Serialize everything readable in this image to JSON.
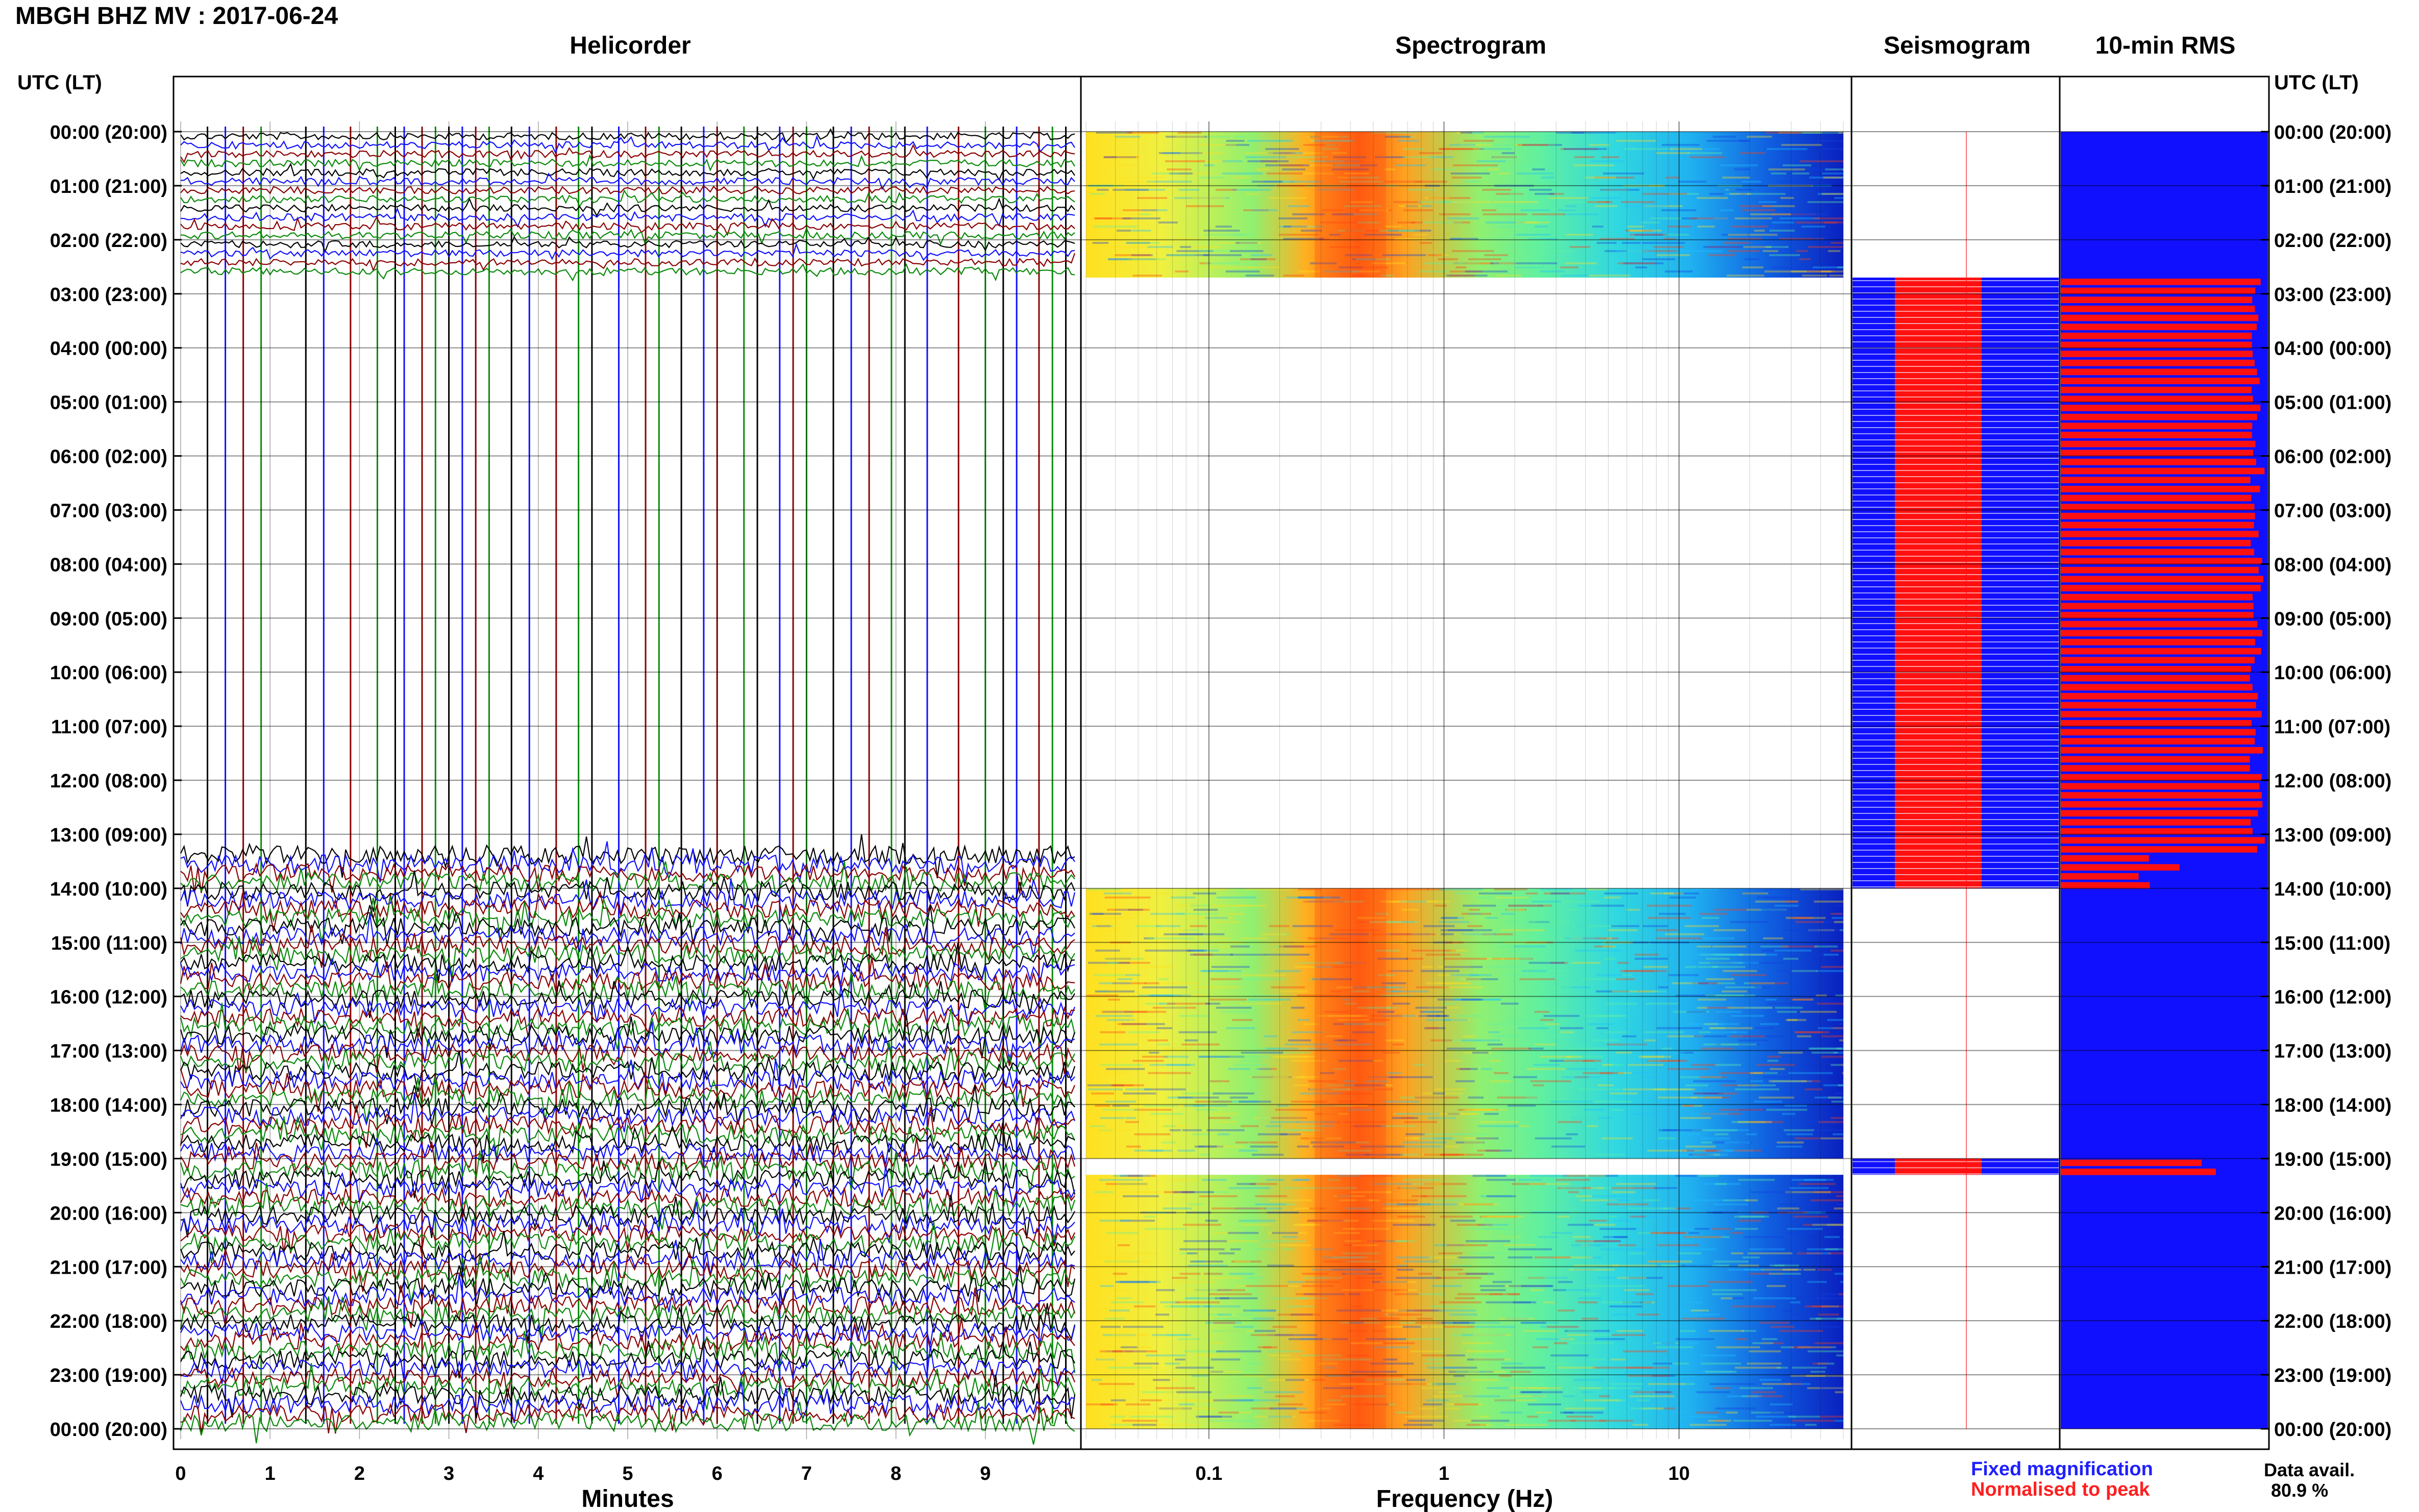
{
  "title": "MBGH BHZ MV : 2017-06-24",
  "panels": {
    "helicorder": "Helicorder",
    "spectrogram": "Spectrogram",
    "seismogram": "Seismogram",
    "rms": "10-min RMS"
  },
  "axis_label_left": "UTC (LT)",
  "axis_label_right": "UTC (LT)",
  "legend": {
    "fixed": "Fixed magnification",
    "normalised": "Normalised to peak"
  },
  "data_availability": {
    "label": "Data avail.",
    "value": "80.9 %"
  },
  "colors": {
    "trace_colors": [
      "#000000",
      "#1010ff",
      "#8b0000",
      "#0a8a0a"
    ],
    "fixed": "#1010ff",
    "normalised": "#ff1010",
    "spectrogram_scale": [
      "#0a1fd0",
      "#10a0ff",
      "#20e0e0",
      "#90f060",
      "#ffe020",
      "#ff8010",
      "#e01010"
    ]
  },
  "chart_data": [
    {
      "type": "line",
      "panel": "helicorder",
      "xlabel": "Minutes",
      "xlim": [
        0,
        10
      ],
      "xticks": [
        0,
        1,
        2,
        3,
        4,
        5,
        6,
        7,
        8,
        9
      ],
      "ylabels": [
        "00:00 (20:00)",
        "01:00 (21:00)",
        "02:00 (22:00)",
        "03:00 (23:00)",
        "04:00 (00:00)",
        "05:00 (01:00)",
        "06:00 (02:00)",
        "07:00 (03:00)",
        "08:00 (04:00)",
        "09:00 (05:00)",
        "10:00 (06:00)",
        "11:00 (07:00)",
        "12:00 (08:00)",
        "13:00 (09:00)",
        "14:00 (10:00)",
        "15:00 (11:00)",
        "16:00 (12:00)",
        "17:00 (13:00)",
        "18:00 (14:00)",
        "19:00 (15:00)",
        "20:00 (16:00)",
        "21:00 (17:00)",
        "22:00 (18:00)",
        "23:00 (19:00)",
        "00:00 (20:00)"
      ],
      "data_segments_utc_hours": [
        [
          0,
          2.7
        ],
        [
          13.3,
          24
        ]
      ]
    },
    {
      "type": "heatmap",
      "panel": "spectrogram",
      "xlabel": "Frequency (Hz)",
      "xscale": "log",
      "xlim": [
        0.03,
        50
      ],
      "xticks": [
        0.1,
        1,
        10
      ],
      "xticklabels": [
        "0.1",
        "1",
        "10"
      ],
      "data_segments_utc_hours": [
        [
          0,
          2.7
        ],
        [
          14,
          19
        ],
        [
          19.3,
          24
        ]
      ],
      "peak_frequency_hz": 0.4
    },
    {
      "type": "bar",
      "panel": "seismogram",
      "data_segments_utc_hours": [
        [
          2.7,
          14
        ],
        [
          19,
          19.3
        ]
      ]
    },
    {
      "type": "bar",
      "panel": "rms",
      "data_segments_utc_hours": [
        [
          0,
          24
        ]
      ]
    }
  ]
}
